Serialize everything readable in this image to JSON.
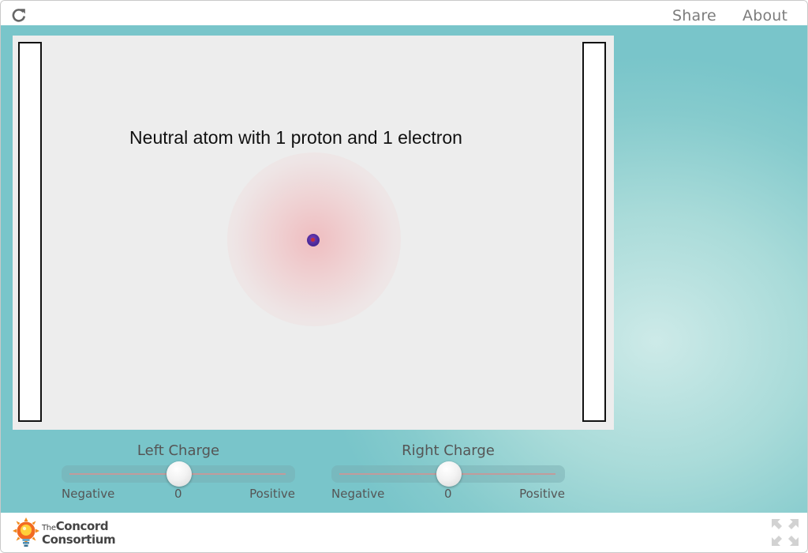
{
  "header": {
    "reload_icon": "reload-icon",
    "share_label": "Share",
    "about_label": "About"
  },
  "simulation": {
    "title": "Neutral atom with 1 proton and 1 electron",
    "colors": {
      "canvas": "#ededed",
      "plate_border": "#111111",
      "electron_cloud": "#f0969b",
      "proton": "#4a2a9a"
    }
  },
  "controls": {
    "left_charge": {
      "label": "Left Charge",
      "min_label": "Negative",
      "value_label": "0",
      "max_label": "Positive",
      "value_fraction": 0.5
    },
    "right_charge": {
      "label": "Right Charge",
      "min_label": "Negative",
      "value_label": "0",
      "max_label": "Positive",
      "value_fraction": 0.5
    }
  },
  "footer": {
    "logo_the": "The",
    "logo_concord": "Concord",
    "logo_consortium": "Consortium",
    "fullscreen_icon": "fullscreen-icon"
  },
  "theme": {
    "stage_background": "#86cbcd",
    "nav_text": "#7c7c7c"
  }
}
